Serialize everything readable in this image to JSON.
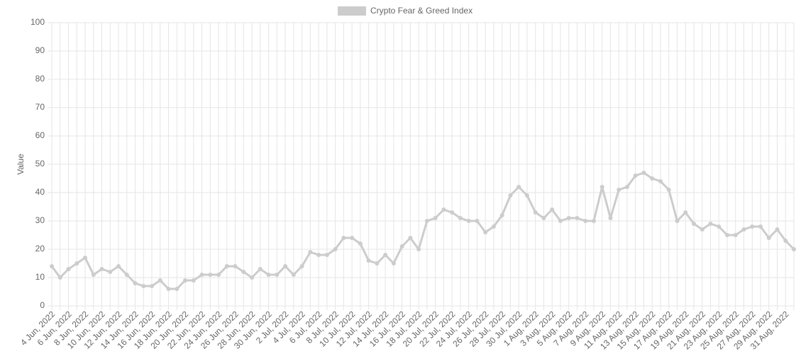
{
  "chart_data": {
    "type": "line",
    "y_label": "Value",
    "categories": [
      "4 Jun, 2022",
      null,
      "6 Jun, 2022",
      null,
      "8 Jun, 2022",
      null,
      "10 Jun, 2022",
      null,
      "12 Jun, 2022",
      null,
      "14 Jun, 2022",
      null,
      "16 Jun, 2022",
      null,
      "18 Jun, 2022",
      null,
      "20 Jun, 2022",
      null,
      "22 Jun, 2022",
      null,
      "24 Jun, 2022",
      null,
      "26 Jun, 2022",
      null,
      "28 Jun, 2022",
      null,
      "30 Jun, 2022",
      null,
      "2 Jul, 2022",
      null,
      "4 Jul, 2022",
      null,
      "6 Jul, 2022",
      null,
      "8 Jul, 2022",
      null,
      "10 Jul, 2022",
      null,
      "12 Jul, 2022",
      null,
      "14 Jul, 2022",
      null,
      "16 Jul, 2022",
      null,
      "18 Jul, 2022",
      null,
      "20 Jul, 2022",
      null,
      "22 Jul, 2022",
      null,
      "24 Jul, 2022",
      null,
      "26 Jul, 2022",
      null,
      "28 Jul, 2022",
      null,
      "30 Jul, 2022",
      null,
      "1 Aug, 2022",
      null,
      "3 Aug, 2022",
      null,
      "5 Aug, 2022",
      null,
      "7 Aug, 2022",
      null,
      "9 Aug, 2022",
      null,
      "11 Aug, 2022",
      null,
      "13 Aug, 2022",
      null,
      "15 Aug, 2022",
      null,
      "17 Aug, 2022",
      null,
      "19 Aug, 2022",
      null,
      "21 Aug, 2022",
      null,
      "23 Aug, 2022",
      null,
      "25 Aug, 2022",
      null,
      "27 Aug, 2022",
      null,
      "29 Aug, 2022",
      null,
      "31 Aug, 2022",
      null
    ],
    "series": [
      {
        "name": "Crypto Fear & Greed Index",
        "color": "#cccccc",
        "values": [
          14,
          10,
          13,
          15,
          17,
          11,
          13,
          12,
          14,
          11,
          8,
          7,
          7,
          9,
          6,
          6,
          9,
          9,
          11,
          11,
          11,
          14,
          14,
          12,
          10,
          13,
          11,
          11,
          14,
          11,
          14,
          19,
          18,
          18,
          20,
          24,
          24,
          22,
          16,
          15,
          18,
          15,
          21,
          24,
          20,
          30,
          31,
          34,
          33,
          31,
          30,
          30,
          26,
          28,
          32,
          39,
          42,
          39,
          33,
          31,
          34,
          30,
          31,
          31,
          30,
          30,
          42,
          31,
          41,
          42,
          46,
          47,
          45,
          44,
          41,
          30,
          33,
          29,
          27,
          29,
          28,
          25,
          25,
          27,
          28,
          28,
          24,
          27,
          23,
          20
        ]
      }
    ],
    "ylim": [
      0,
      100
    ],
    "yticks": [
      0,
      10,
      20,
      30,
      40,
      50,
      60,
      70,
      80,
      90,
      100
    ],
    "grid": true
  }
}
